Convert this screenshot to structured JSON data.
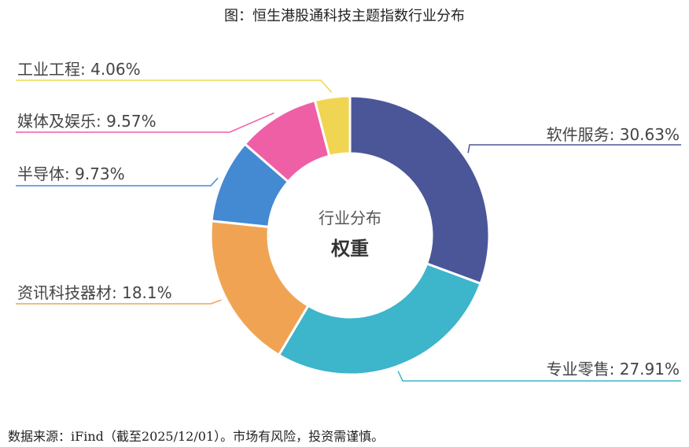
{
  "title": "图：恒生港股通科技主题指数行业分布",
  "source": "数据来源：iFind（截至2025/12/01）。市场有风险，投资需谨慎。",
  "chart_data": {
    "type": "pie",
    "variant": "donut",
    "center_title": "行业分布",
    "center_subtitle": "权重",
    "unit": "%",
    "slices": [
      {
        "name": "软件服务",
        "value": 30.63,
        "label": "软件服务: 30.63%",
        "color": "#4b5699"
      },
      {
        "name": "专业零售",
        "value": 27.91,
        "label": "专业零售: 27.91%",
        "color": "#3db5cb"
      },
      {
        "name": "资讯科技器材",
        "value": 18.1,
        "label": "资讯科技器材: 18.1%",
        "color": "#f0a453"
      },
      {
        "name": "半导体",
        "value": 9.73,
        "label": "半导体: 9.73%",
        "color": "#438ad2"
      },
      {
        "name": "媒体及娱乐",
        "value": 9.57,
        "label": "媒体及娱乐: 9.57%",
        "color": "#ef5fa6"
      },
      {
        "name": "工业工程",
        "value": 4.06,
        "label": "工业工程: 4.06%",
        "color": "#f0d553"
      }
    ]
  }
}
